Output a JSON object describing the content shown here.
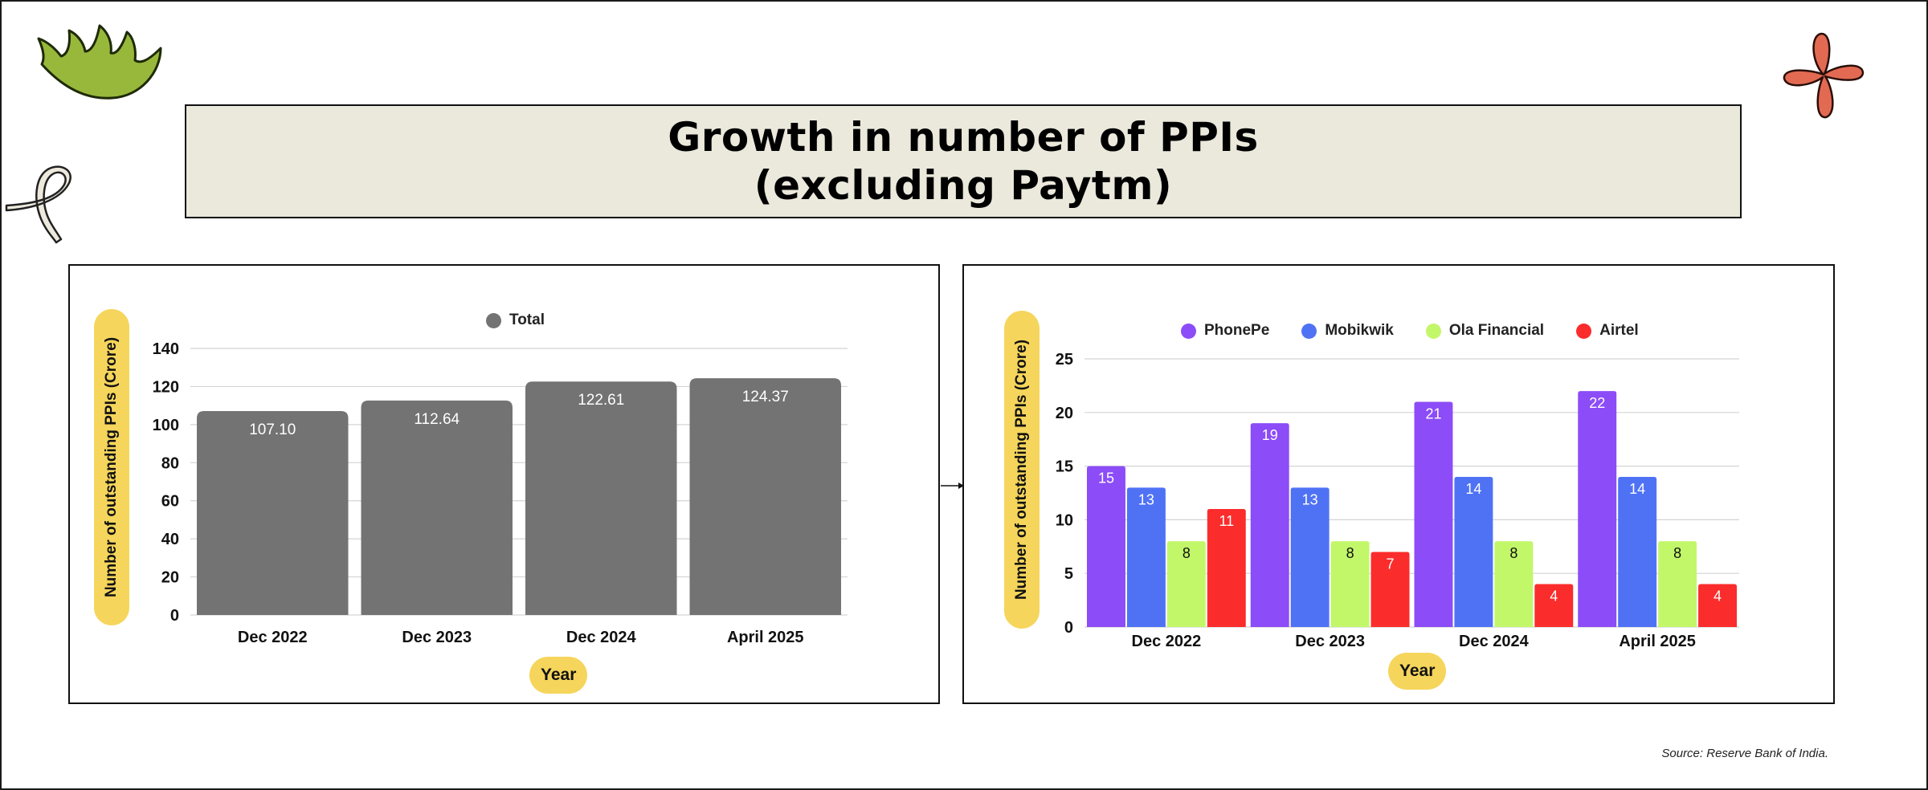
{
  "title": {
    "line1": "Growth in number of PPIs",
    "line2": "(excluding Paytm)"
  },
  "source": "Source: Reserve Bank of India.",
  "colors": {
    "total": "#737373",
    "phonepe": "#8c4cf7",
    "mobikwik": "#4f72f5",
    "ola": "#c2f76a",
    "airtel": "#fb2c2c",
    "pill": "#f5d55b"
  },
  "chart_data": [
    {
      "type": "bar",
      "title": "",
      "xlabel": "Year",
      "ylabel": "Number of outstanding PPIs (Crore)",
      "categories": [
        "Dec 2022",
        "Dec 2023",
        "Dec 2024",
        "April 2025"
      ],
      "series": [
        {
          "name": "Total",
          "color": "#737373",
          "values": [
            107.1,
            112.64,
            122.61,
            124.37
          ],
          "labels": [
            "107.10",
            "112.64",
            "122.61",
            "124.37"
          ]
        }
      ],
      "yticks": [
        0,
        20,
        40,
        60,
        80,
        100,
        120,
        140
      ],
      "ylim": [
        0,
        140
      ],
      "legend": "top-center",
      "grid": true
    },
    {
      "type": "bar",
      "title": "",
      "xlabel": "Year",
      "ylabel": "Number of outstanding PPIs (Crore)",
      "categories": [
        "Dec 2022",
        "Dec 2023",
        "Dec 2024",
        "April 2025"
      ],
      "series": [
        {
          "name": "PhonePe",
          "color": "#8c4cf7",
          "values": [
            15,
            19,
            21,
            22
          ],
          "labels": [
            "15",
            "19",
            "21",
            "22"
          ]
        },
        {
          "name": "Mobikwik",
          "color": "#4f72f5",
          "values": [
            13,
            13,
            14,
            14
          ],
          "labels": [
            "13",
            "13",
            "14",
            "14"
          ]
        },
        {
          "name": "Ola Financial",
          "color": "#c2f76a",
          "values": [
            8,
            8,
            8,
            8
          ],
          "labels": [
            "8",
            "8",
            "8",
            "8"
          ]
        },
        {
          "name": "Airtel",
          "color": "#fb2c2c",
          "values": [
            11,
            7,
            4,
            4
          ],
          "labels": [
            "11",
            "7",
            "4",
            "4"
          ]
        }
      ],
      "yticks": [
        0,
        5,
        10,
        15,
        20,
        25
      ],
      "ylim": [
        0,
        25
      ],
      "legend": "top-center",
      "grid": true
    }
  ]
}
